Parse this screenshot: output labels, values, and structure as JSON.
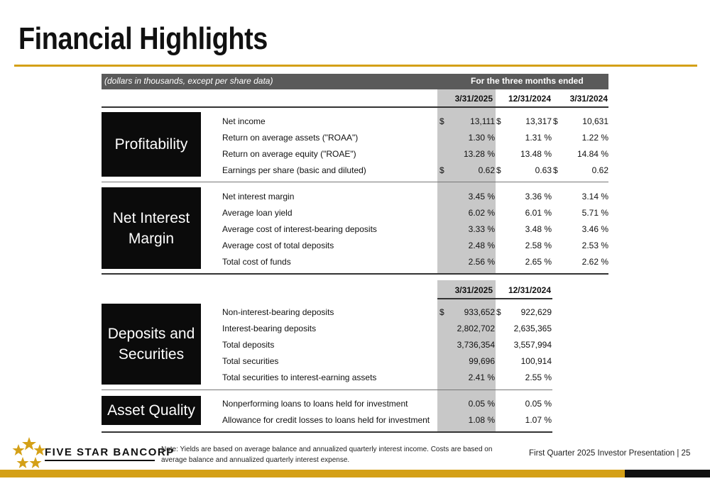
{
  "page": {
    "title": "Financial Highlights"
  },
  "header": {
    "note": "(dollars in thousands, except per share data)",
    "period_label": "For the three months ended",
    "columns": [
      "3/31/2025",
      "12/31/2024",
      "3/31/2024"
    ]
  },
  "sections": [
    {
      "category": "Profitability",
      "rows": [
        {
          "label": "Net income",
          "values": [
            "13,111",
            "13,317",
            "10,631"
          ],
          "dollar": true
        },
        {
          "label": "Return on average assets (\"ROAA\")",
          "values": [
            "1.30 %",
            "1.31 %",
            "1.22 %"
          ]
        },
        {
          "label": "Return on average equity (\"ROAE\")",
          "values": [
            "13.28 %",
            "13.48 %",
            "14.84 %"
          ]
        },
        {
          "label": "Earnings per share (basic and diluted)",
          "values": [
            "0.62",
            "0.63",
            "0.62"
          ],
          "dollar": true
        }
      ]
    },
    {
      "category": "Net Interest Margin",
      "rows": [
        {
          "label": "Net interest margin",
          "values": [
            "3.45 %",
            "3.36 %",
            "3.14 %"
          ]
        },
        {
          "label": "Average loan yield",
          "values": [
            "6.02 %",
            "6.01 %",
            "5.71 %"
          ]
        },
        {
          "label": "Average cost of interest-bearing deposits",
          "values": [
            "3.33 %",
            "3.48 %",
            "3.46 %"
          ]
        },
        {
          "label": "Average cost of total deposits",
          "values": [
            "2.48 %",
            "2.58 %",
            "2.53 %"
          ]
        },
        {
          "label": "Total cost of funds",
          "values": [
            "2.56 %",
            "2.65 %",
            "2.62 %"
          ]
        }
      ]
    }
  ],
  "balance_header": {
    "columns": [
      "3/31/2025",
      "12/31/2024"
    ]
  },
  "balance_sections": [
    {
      "category": "Deposits and Securities",
      "rows": [
        {
          "label": "Non-interest-bearing deposits",
          "values": [
            "933,652",
            "922,629"
          ],
          "dollar": true
        },
        {
          "label": "Interest-bearing deposits",
          "values": [
            "2,802,702",
            "2,635,365"
          ]
        },
        {
          "label": "Total deposits",
          "values": [
            "3,736,354",
            "3,557,994"
          ]
        },
        {
          "label": "Total securities",
          "values": [
            "99,696",
            "100,914"
          ]
        },
        {
          "label": "Total securities to interest-earning assets",
          "values": [
            "2.41 %",
            "2.55 %"
          ]
        }
      ]
    },
    {
      "category": "Asset Quality",
      "rows": [
        {
          "label": "Nonperforming loans to loans held for investment",
          "values": [
            "0.05 %",
            "0.05 %"
          ]
        },
        {
          "label": "Allowance for credit losses to loans held for investment",
          "values": [
            "1.08 %",
            "1.07 %"
          ]
        }
      ]
    }
  ],
  "dollar_sign": "$",
  "footer": {
    "brand": "FIVE STAR BANCORP",
    "note": "Note: Yields are based on average balance and annualized quarterly interest income. Costs are based on average balance and annualized quarterly interest expense.",
    "presentation": "First Quarter 2025 Investor Presentation | 25",
    "colors": {
      "gold": "#d4a017",
      "black": "#111111",
      "header_gray": "#5a5a5a",
      "shade_gray": "#c8c8c8"
    }
  }
}
